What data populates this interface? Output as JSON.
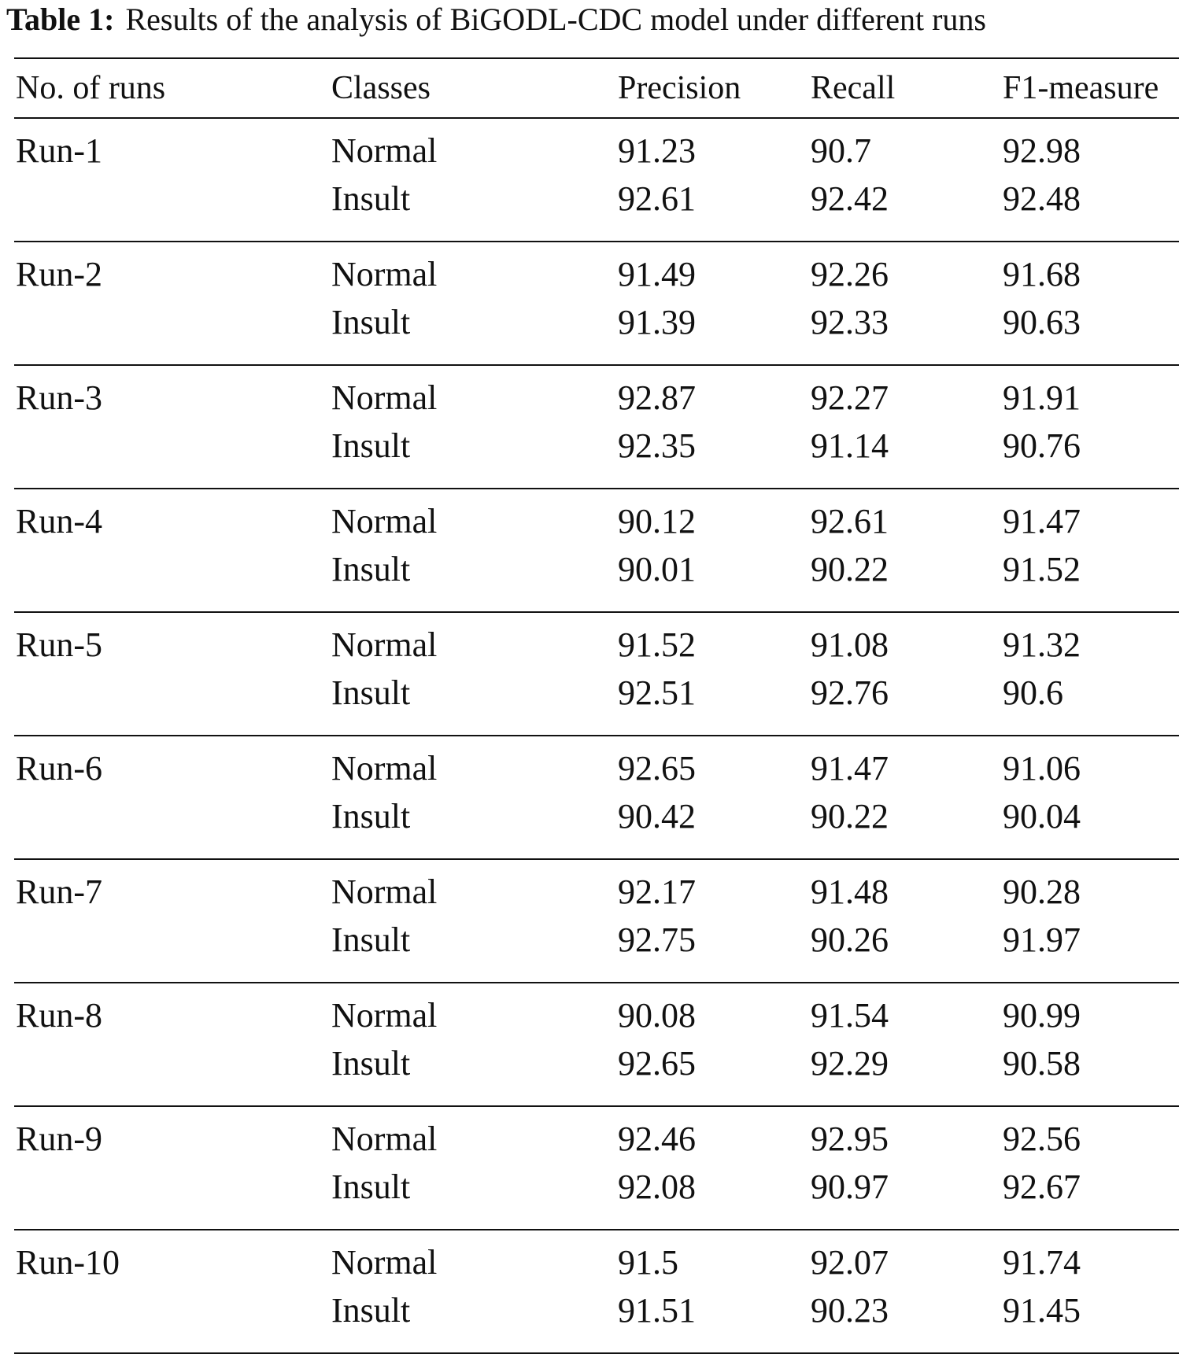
{
  "caption": {
    "label": "Table 1:",
    "text": "Results of the analysis of BiGODL-CDC model under different runs"
  },
  "table": {
    "headers": [
      "No. of runs",
      "Classes",
      "Precision",
      "Recall",
      "F1-measure"
    ],
    "groups": [
      {
        "run": "Run-1",
        "rows": [
          {
            "class": "Normal",
            "precision": "91.23",
            "recall": "90.7",
            "f1": "92.98"
          },
          {
            "class": "Insult",
            "precision": "92.61",
            "recall": "92.42",
            "f1": "92.48"
          }
        ]
      },
      {
        "run": "Run-2",
        "rows": [
          {
            "class": "Normal",
            "precision": "91.49",
            "recall": "92.26",
            "f1": "91.68"
          },
          {
            "class": "Insult",
            "precision": "91.39",
            "recall": "92.33",
            "f1": "90.63"
          }
        ]
      },
      {
        "run": "Run-3",
        "rows": [
          {
            "class": "Normal",
            "precision": "92.87",
            "recall": "92.27",
            "f1": "91.91"
          },
          {
            "class": "Insult",
            "precision": "92.35",
            "recall": "91.14",
            "f1": "90.76"
          }
        ]
      },
      {
        "run": "Run-4",
        "rows": [
          {
            "class": "Normal",
            "precision": "90.12",
            "recall": "92.61",
            "f1": "91.47"
          },
          {
            "class": "Insult",
            "precision": "90.01",
            "recall": "90.22",
            "f1": "91.52"
          }
        ]
      },
      {
        "run": "Run-5",
        "rows": [
          {
            "class": "Normal",
            "precision": "91.52",
            "recall": "91.08",
            "f1": "91.32"
          },
          {
            "class": "Insult",
            "precision": "92.51",
            "recall": "92.76",
            "f1": "90.6"
          }
        ]
      },
      {
        "run": "Run-6",
        "rows": [
          {
            "class": "Normal",
            "precision": "92.65",
            "recall": "91.47",
            "f1": "91.06"
          },
          {
            "class": "Insult",
            "precision": "90.42",
            "recall": "90.22",
            "f1": "90.04"
          }
        ]
      },
      {
        "run": "Run-7",
        "rows": [
          {
            "class": "Normal",
            "precision": "92.17",
            "recall": "91.48",
            "f1": "90.28"
          },
          {
            "class": "Insult",
            "precision": "92.75",
            "recall": "90.26",
            "f1": "91.97"
          }
        ]
      },
      {
        "run": "Run-8",
        "rows": [
          {
            "class": "Normal",
            "precision": "90.08",
            "recall": "91.54",
            "f1": "90.99"
          },
          {
            "class": "Insult",
            "precision": "92.65",
            "recall": "92.29",
            "f1": "90.58"
          }
        ]
      },
      {
        "run": "Run-9",
        "rows": [
          {
            "class": "Normal",
            "precision": "92.46",
            "recall": "92.95",
            "f1": "92.56"
          },
          {
            "class": "Insult",
            "precision": "92.08",
            "recall": "90.97",
            "f1": "92.67"
          }
        ]
      },
      {
        "run": "Run-10",
        "rows": [
          {
            "class": "Normal",
            "precision": "91.5",
            "recall": "92.07",
            "f1": "91.74"
          },
          {
            "class": "Insult",
            "precision": "91.51",
            "recall": "90.23",
            "f1": "91.45"
          }
        ]
      }
    ]
  }
}
